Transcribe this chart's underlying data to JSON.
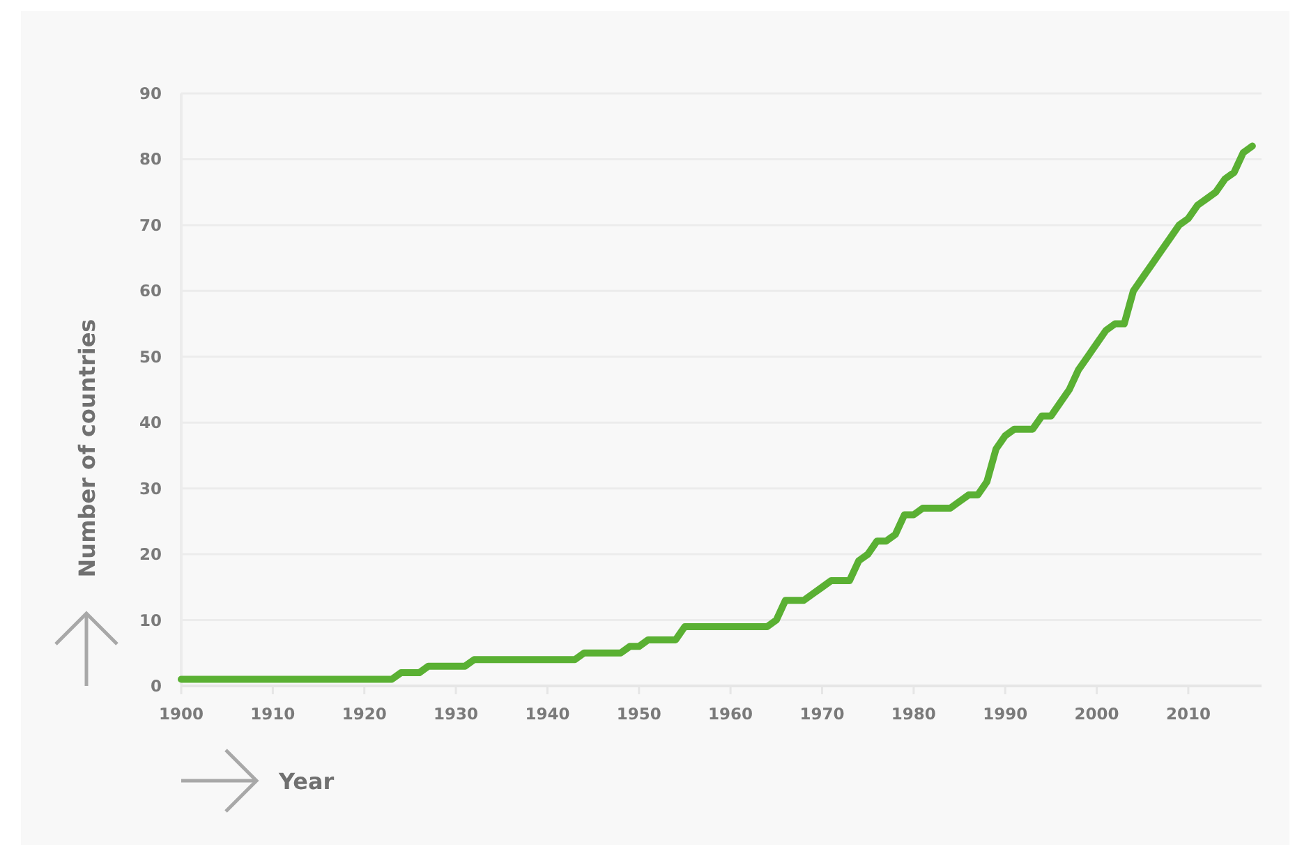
{
  "chart_data": {
    "type": "line",
    "xlabel": "Year",
    "ylabel": "Number of countries",
    "xlim": [
      1900,
      2018
    ],
    "xticks": [
      1900,
      1910,
      1920,
      1930,
      1940,
      1950,
      1960,
      1970,
      1980,
      1990,
      2000,
      2010
    ],
    "ylim": [
      0,
      90
    ],
    "yticks": [
      0,
      10,
      20,
      30,
      40,
      50,
      60,
      70,
      80,
      90
    ],
    "grid": "y",
    "marker": "none",
    "line_style": "solid",
    "series": [
      {
        "color": "#5ab033",
        "x": [
          1900,
          1901,
          1902,
          1903,
          1904,
          1905,
          1906,
          1907,
          1908,
          1909,
          1910,
          1911,
          1912,
          1913,
          1914,
          1915,
          1916,
          1917,
          1918,
          1919,
          1920,
          1921,
          1922,
          1923,
          1924,
          1925,
          1926,
          1927,
          1928,
          1929,
          1930,
          1931,
          1932,
          1933,
          1934,
          1935,
          1936,
          1937,
          1938,
          1939,
          1940,
          1941,
          1942,
          1943,
          1944,
          1945,
          1946,
          1947,
          1948,
          1949,
          1950,
          1951,
          1952,
          1953,
          1954,
          1955,
          1956,
          1957,
          1958,
          1959,
          1960,
          1961,
          1962,
          1963,
          1964,
          1965,
          1966,
          1967,
          1968,
          1969,
          1970,
          1971,
          1972,
          1973,
          1974,
          1975,
          1976,
          1977,
          1978,
          1979,
          1980,
          1981,
          1982,
          1983,
          1984,
          1985,
          1986,
          1987,
          1988,
          1989,
          1990,
          1991,
          1992,
          1993,
          1994,
          1995,
          1996,
          1997,
          1998,
          1999,
          2000,
          2001,
          2002,
          2003,
          2004,
          2005,
          2006,
          2007,
          2008,
          2009,
          2010,
          2011,
          2012,
          2013,
          2014,
          2015,
          2016,
          2017
        ],
        "values": [
          1,
          1,
          1,
          1,
          1,
          1,
          1,
          1,
          1,
          1,
          1,
          1,
          1,
          1,
          1,
          1,
          1,
          1,
          1,
          1,
          1,
          1,
          1,
          1,
          2,
          2,
          2,
          3,
          3,
          3,
          3,
          3,
          4,
          4,
          4,
          4,
          4,
          4,
          4,
          4,
          4,
          4,
          4,
          4,
          5,
          5,
          5,
          5,
          5,
          6,
          6,
          7,
          7,
          7,
          7,
          9,
          9,
          9,
          9,
          9,
          9,
          9,
          9,
          9,
          9,
          10,
          13,
          13,
          13,
          14,
          15,
          16,
          16,
          16,
          19,
          20,
          22,
          22,
          23,
          26,
          26,
          27,
          27,
          27,
          27,
          28,
          29,
          29,
          31,
          36,
          38,
          39,
          39,
          39,
          41,
          41,
          43,
          45,
          48,
          50,
          52,
          54,
          55,
          55,
          60,
          62,
          64,
          66,
          68,
          70,
          71,
          73,
          74,
          75,
          77,
          78,
          81,
          82
        ]
      }
    ]
  }
}
